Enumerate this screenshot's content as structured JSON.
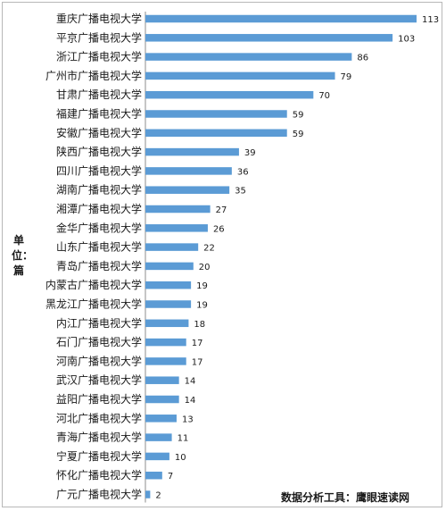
{
  "chart_data": {
    "type": "bar",
    "orientation": "horizontal",
    "ylabel": "单位：篇",
    "source": "数据分析工具：鹰眼速读网",
    "bar_color": "#5b9bd5",
    "categories": [
      "重庆广播电视大学",
      "平京广播电视大学",
      "浙江广播电视大学",
      "广州市广播电视大学",
      "甘肃广播电视大学",
      "福建广播电视大学",
      "安徽广播电视大学",
      "陕西广播电视大学",
      "四川广播电视大学",
      "湖南广播电视大学",
      "湘潭广播电视大学",
      "金华广播电视大学",
      "山东广播电视大学",
      "青岛广播电视大学",
      "内蒙古广播电视大学",
      "黑龙江广播电视大学",
      "内江广播电视大学",
      "石门广播电视大学",
      "河南广播电视大学",
      "武汉广播电视大学",
      "益阳广播电视大学",
      "河北广播电视大学",
      "青海广播电视大学",
      "宁夏广播电视大学",
      "怀化广播电视大学",
      "广元广播电视大学"
    ],
    "values": [
      113,
      103,
      86,
      79,
      70,
      59,
      59,
      39,
      36,
      35,
      27,
      26,
      22,
      20,
      19,
      19,
      18,
      17,
      17,
      14,
      14,
      13,
      11,
      10,
      7,
      2
    ],
    "xlim": [
      0,
      113
    ]
  }
}
